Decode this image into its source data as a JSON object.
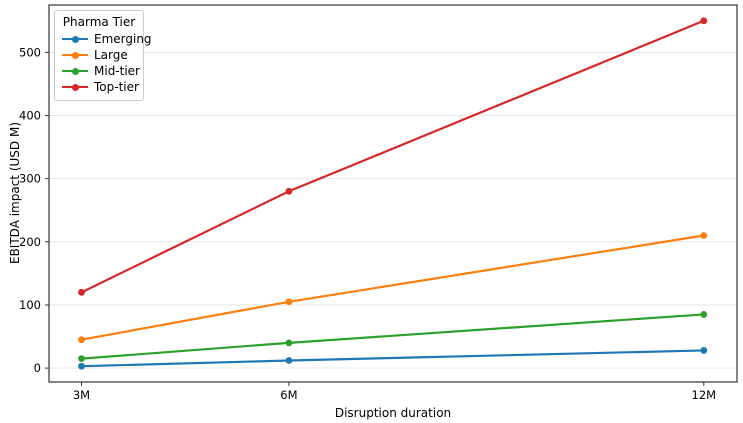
{
  "chart_data": {
    "type": "line",
    "title": "",
    "xlabel": "Disruption duration",
    "ylabel": "EBITDA impact (USD M)",
    "categories": [
      "3M",
      "6M",
      "12M"
    ],
    "x_positions": [
      3,
      6,
      12
    ],
    "series": [
      {
        "name": "Emerging",
        "color": "#1f77b4",
        "values": [
          3,
          12,
          28
        ]
      },
      {
        "name": "Large",
        "color": "#ff7f0e",
        "values": [
          45,
          105,
          210
        ]
      },
      {
        "name": "Mid-tier",
        "color": "#2ca02c",
        "values": [
          15,
          40,
          85
        ]
      },
      {
        "name": "Top-tier",
        "color": "#d62728",
        "values": [
          120,
          280,
          550
        ]
      }
    ],
    "yticks": [
      0,
      100,
      200,
      300,
      400,
      500
    ],
    "ylim": [
      -22,
      575
    ],
    "xlim": [
      2.53,
      12.48
    ],
    "legend": {
      "title": "Pharma Tier",
      "position": "upper-left"
    },
    "grid": "horizontal",
    "grid_color": "#e6e6e6",
    "axis_color": "#333333",
    "text_color": "#000000",
    "marker": "circle"
  }
}
